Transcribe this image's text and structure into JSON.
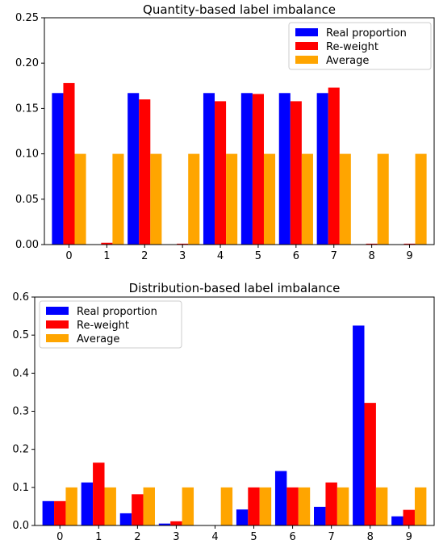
{
  "chart_data": [
    {
      "type": "bar",
      "title": "Quantity-based label imbalance",
      "categories": [
        "0",
        "1",
        "2",
        "3",
        "4",
        "5",
        "6",
        "7",
        "8",
        "9"
      ],
      "series": [
        {
          "name": "Real proportion",
          "color": "#0000ff",
          "values": [
            0.167,
            0.0,
            0.167,
            0.0,
            0.167,
            0.167,
            0.167,
            0.167,
            0.0,
            0.0
          ]
        },
        {
          "name": "Re-weight",
          "color": "#ff0000",
          "values": [
            0.178,
            0.002,
            0.16,
            0.001,
            0.158,
            0.166,
            0.158,
            0.173,
            0.001,
            0.001
          ]
        },
        {
          "name": "Average",
          "color": "#ffa500",
          "values": [
            0.1,
            0.1,
            0.1,
            0.1,
            0.1,
            0.1,
            0.1,
            0.1,
            0.1,
            0.1
          ]
        }
      ],
      "yticks": [
        "0.00",
        "0.05",
        "0.10",
        "0.15",
        "0.20",
        "0.25"
      ],
      "ylim": [
        0,
        0.25
      ],
      "legend_position": "upper right",
      "xlabel": "",
      "ylabel": ""
    },
    {
      "type": "bar",
      "title": "Distribution-based label imbalance",
      "categories": [
        "0",
        "1",
        "2",
        "3",
        "4",
        "5",
        "6",
        "7",
        "8",
        "9"
      ],
      "series": [
        {
          "name": "Real proportion",
          "color": "#0000ff",
          "values": [
            0.064,
            0.113,
            0.032,
            0.005,
            0.0,
            0.042,
            0.143,
            0.049,
            0.525,
            0.024
          ]
        },
        {
          "name": "Re-weight",
          "color": "#ff0000",
          "values": [
            0.064,
            0.165,
            0.082,
            0.011,
            0.001,
            0.1,
            0.1,
            0.113,
            0.322,
            0.041
          ]
        },
        {
          "name": "Average",
          "color": "#ffa500",
          "values": [
            0.1,
            0.1,
            0.1,
            0.1,
            0.1,
            0.1,
            0.1,
            0.1,
            0.1,
            0.1
          ]
        }
      ],
      "yticks": [
        "0.0",
        "0.1",
        "0.2",
        "0.3",
        "0.4",
        "0.5",
        "0.6"
      ],
      "ylim": [
        0,
        0.6
      ],
      "legend_position": "upper left",
      "xlabel": "",
      "ylabel": ""
    }
  ]
}
